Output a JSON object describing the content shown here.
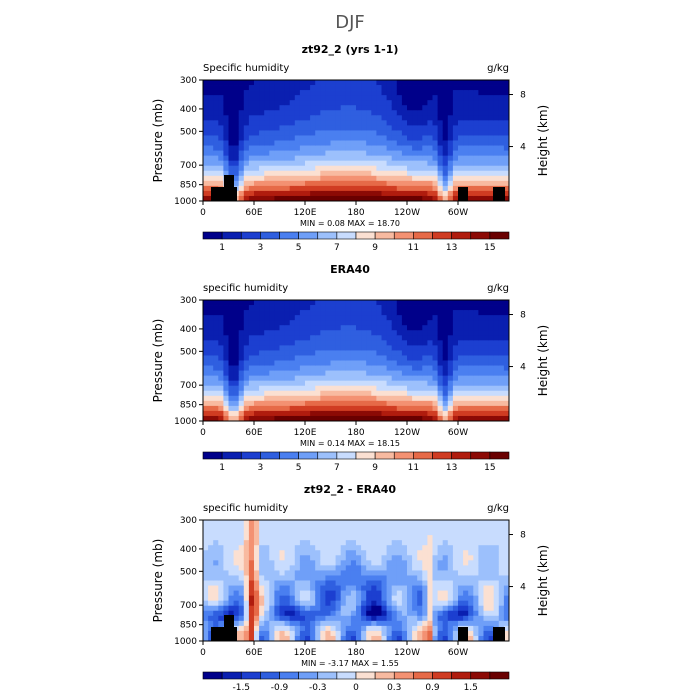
{
  "figure_title": "DJF",
  "chart_data": [
    {
      "type": "heatmap",
      "title": "zt92_2 (yrs 1-1)",
      "subtitle_left": "Specific humidity",
      "units": "g/kg",
      "ylabel": "Pressure (mb)",
      "ylabel_right": "Height (km)",
      "yticks": [
        "300",
        "400",
        "500",
        "700",
        "850",
        "1000"
      ],
      "yticks_right": [
        "8",
        "4"
      ],
      "xticks": [
        "0",
        "60E",
        "120E",
        "180",
        "120W",
        "60W"
      ],
      "stats": "MIN =    0.08   MAX =   18.70",
      "colorbar_labels": [
        "1",
        "3",
        "5",
        "7",
        "9",
        "11",
        "13",
        "15"
      ],
      "colorbar_min": 0,
      "colorbar_max": 16,
      "field": "abs",
      "topography": true
    },
    {
      "type": "heatmap",
      "title": "ERA40",
      "subtitle_left": "specific humidity",
      "units": "g/kg",
      "ylabel": "Pressure (mb)",
      "ylabel_right": "Height (km)",
      "yticks": [
        "300",
        "400",
        "500",
        "700",
        "850",
        "1000"
      ],
      "yticks_right": [
        "8",
        "4"
      ],
      "xticks": [
        "0",
        "60E",
        "120E",
        "180",
        "120W",
        "60W"
      ],
      "stats": "MIN =    0.14   MAX =   18.15",
      "colorbar_labels": [
        "1",
        "3",
        "5",
        "7",
        "9",
        "11",
        "13",
        "15"
      ],
      "colorbar_min": 0,
      "colorbar_max": 16,
      "field": "abs",
      "topography": false
    },
    {
      "type": "heatmap",
      "title": "zt92_2 - ERA40",
      "subtitle_left": "specific humidity",
      "units": "g/kg",
      "ylabel": "Pressure (mb)",
      "ylabel_right": "Height (km)",
      "yticks": [
        "300",
        "400",
        "500",
        "700",
        "850",
        "1000"
      ],
      "yticks_right": [
        "8",
        "4"
      ],
      "xticks": [
        "0",
        "60E",
        "120E",
        "180",
        "120W",
        "60W"
      ],
      "stats": "MIN =   -3.17   MAX =    1.55",
      "colorbar_labels": [
        "-1.5",
        "-0.9",
        "-0.3",
        "0",
        "0.3",
        "0.9",
        "1.5"
      ],
      "colorbar_min": -2,
      "colorbar_max": 2,
      "field": "diff",
      "topography": true
    }
  ]
}
